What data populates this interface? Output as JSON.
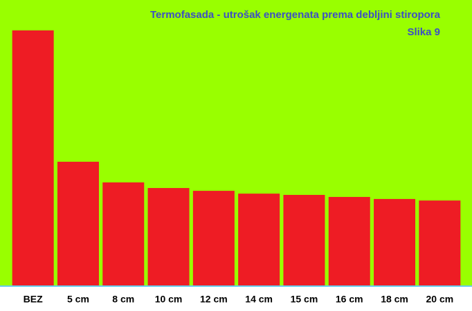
{
  "chart_data": {
    "type": "bar",
    "title": "Termofasada - utrošak energenata prema debljini stiropora",
    "subtitle": "Slika 9",
    "categories": [
      "BEZ",
      "5 cm",
      "8 cm",
      "10 cm",
      "12 cm",
      "14 cm",
      "15 cm",
      "16 cm",
      "18 cm",
      "20 cm"
    ],
    "values": [
      100,
      48.5,
      40.4,
      38.2,
      37.1,
      36,
      35.5,
      34.7,
      33.9,
      33.3
    ],
    "color": "#ee1c24",
    "ylim": [
      0,
      100
    ]
  }
}
